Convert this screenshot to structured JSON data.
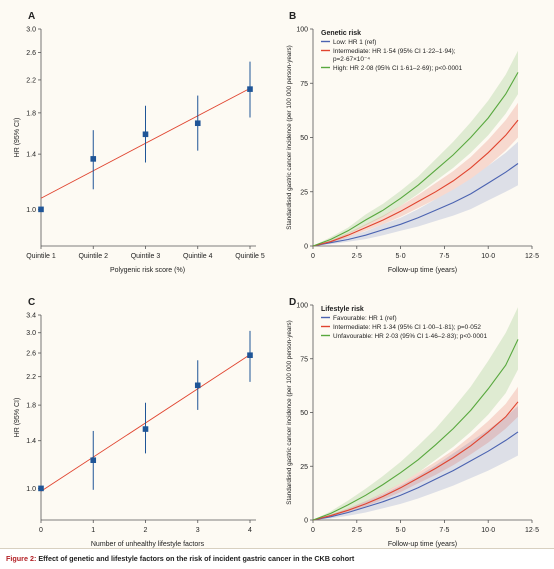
{
  "caption": {
    "prefix": "Figure 2:",
    "text": "Effect of genetic and lifestyle factors on the risk of incident gastric cancer in the CKB cohort"
  },
  "colors": {
    "forest_marker": "#1f5597",
    "forest_line": "#e0442f",
    "low": "#4b63b1",
    "intermediate": "#e0442f",
    "high": "#58a83e"
  },
  "chart_data": [
    {
      "panel": "A",
      "type": "scatter",
      "xlabel": "Polygenic risk score (%)",
      "ylabel": "HR (95% CI)",
      "scale": "log",
      "categories": [
        "Quintile 1",
        "Quintile 2",
        "Quintile 3",
        "Quintile 4",
        "Quintile 5"
      ],
      "yticks": [
        "1.0",
        "1.4",
        "1.8",
        "2.2",
        "2.6",
        "3.0"
      ],
      "ylim": [
        0.8,
        3.0
      ],
      "points": [
        {
          "hr": 1.0,
          "lo": 1.0,
          "hi": 1.0
        },
        {
          "hr": 1.36,
          "lo": 1.13,
          "hi": 1.62
        },
        {
          "hr": 1.58,
          "lo": 1.33,
          "hi": 1.88
        },
        {
          "hr": 1.69,
          "lo": 1.43,
          "hi": 2.0
        },
        {
          "hr": 2.08,
          "lo": 1.75,
          "hi": 2.46
        }
      ],
      "trend": {
        "start": 1.07,
        "end": 2.09
      }
    },
    {
      "panel": "B",
      "type": "line",
      "xlabel": "Follow-up time (years)",
      "ylabel": "Standardised gastric cancer incidence (per 100 000 person-years)",
      "legend_title": "Genetic risk",
      "xticks": [
        "0",
        "2·5",
        "5·0",
        "7·5",
        "10·0",
        "12·5"
      ],
      "yticks": [
        "0",
        "25",
        "50",
        "75",
        "100"
      ],
      "xlim": [
        0,
        12.5
      ],
      "ylim": [
        0,
        100
      ],
      "series": [
        {
          "name": "Low: HR 1 (ref)",
          "color_key": "low",
          "x": [
            0,
            1,
            2,
            3,
            4,
            5,
            6,
            7,
            8,
            9,
            10,
            11,
            11.7
          ],
          "values": [
            0,
            1.5,
            3,
            5,
            7.5,
            10,
            13,
            16.5,
            20,
            24,
            29,
            34,
            38
          ],
          "lower": [
            0,
            0.8,
            2,
            3.2,
            5,
            7,
            9,
            11.5,
            14,
            17,
            21,
            25,
            28
          ],
          "upper": [
            0,
            2.3,
            4.2,
            6.8,
            10,
            13,
            17,
            21.5,
            26,
            31,
            37,
            43,
            48
          ]
        },
        {
          "name": "Intermediate: HR 1·54 (95% CI 1·22–1·94); p=2·67×10⁻⁴",
          "color_key": "intermediate",
          "x": [
            0,
            1,
            2,
            3,
            4,
            5,
            6,
            7,
            8,
            9,
            10,
            11,
            11.7
          ],
          "values": [
            0,
            2,
            5,
            8.5,
            12,
            16,
            20.5,
            25,
            30,
            36,
            43,
            51,
            58
          ],
          "lower": [
            0,
            1.4,
            4,
            7,
            10,
            13.5,
            17.5,
            21.5,
            26,
            31,
            37,
            44,
            50
          ],
          "upper": [
            0,
            2.6,
            6,
            10,
            14,
            18.5,
            23.5,
            29,
            34.5,
            41,
            49,
            58,
            66
          ]
        },
        {
          "name": "High: HR 2·08 (95% CI 1·61–2·69); p<0·0001",
          "color_key": "high",
          "x": [
            0,
            1,
            2,
            3,
            4,
            5,
            6,
            7,
            8,
            9,
            10,
            11,
            11.7
          ],
          "values": [
            0,
            3,
            7,
            12,
            16.5,
            22,
            28,
            35,
            42,
            50,
            59,
            70,
            80
          ],
          "lower": [
            0,
            2,
            5.5,
            9.5,
            13.5,
            18.5,
            24,
            30,
            36,
            43,
            51,
            61,
            70
          ],
          "upper": [
            0,
            4,
            8.5,
            14.5,
            19.5,
            25.5,
            32,
            40,
            48,
            57,
            67,
            79,
            90
          ]
        }
      ]
    },
    {
      "panel": "C",
      "type": "scatter",
      "xlabel": "Number of unhealthy lifestyle factors",
      "ylabel": "HR (95% CI)",
      "scale": "log",
      "categories": [
        "0",
        "1",
        "2",
        "3",
        "4"
      ],
      "yticks": [
        "1.0",
        "1.4",
        "1.8",
        "2.2",
        "2.6",
        "3.0",
        "3.4"
      ],
      "ylim": [
        0.8,
        3.4
      ],
      "points": [
        {
          "hr": 1.0,
          "lo": 1.0,
          "hi": 1.0
        },
        {
          "hr": 1.22,
          "lo": 0.99,
          "hi": 1.5
        },
        {
          "hr": 1.52,
          "lo": 1.28,
          "hi": 1.83
        },
        {
          "hr": 2.07,
          "lo": 1.74,
          "hi": 2.47
        },
        {
          "hr": 2.56,
          "lo": 2.12,
          "hi": 3.04
        }
      ],
      "trend": {
        "start": 0.98,
        "end": 2.57
      }
    },
    {
      "panel": "D",
      "type": "line",
      "xlabel": "Follow-up time (years)",
      "ylabel": "Standardised gastric cancer incidence (per 100 000 person-years)",
      "legend_title": "Lifestyle risk",
      "xticks": [
        "0",
        "2·5",
        "5·0",
        "7·5",
        "10·0",
        "12·5"
      ],
      "yticks": [
        "0",
        "25",
        "50",
        "75",
        "100"
      ],
      "xlim": [
        0,
        12.5
      ],
      "ylim": [
        0,
        100
      ],
      "series": [
        {
          "name": "Favourable: HR 1 (ref)",
          "color_key": "low",
          "x": [
            0,
            1,
            2,
            3,
            4,
            5,
            6,
            7,
            8,
            9,
            10,
            11,
            11.7
          ],
          "values": [
            0,
            1.5,
            3.5,
            6,
            8.5,
            11.5,
            15,
            19,
            23,
            27.5,
            32,
            37,
            41
          ],
          "lower": [
            0,
            0.7,
            2,
            3.5,
            5.5,
            7.5,
            10,
            13,
            16,
            19.5,
            23,
            27,
            30
          ],
          "upper": [
            0,
            2.5,
            5,
            8.5,
            12,
            16,
            20.5,
            25.5,
            31,
            36.5,
            42,
            48,
            53
          ]
        },
        {
          "name": "Intermediate: HR 1·34 (95% CI 1·00–1·81); p=0·052",
          "color_key": "intermediate",
          "x": [
            0,
            1,
            2,
            3,
            4,
            5,
            6,
            7,
            8,
            9,
            10,
            11,
            11.7
          ],
          "values": [
            0,
            2,
            4.5,
            7.5,
            11,
            15,
            19.5,
            24,
            29,
            34.5,
            41,
            48,
            55
          ],
          "lower": [
            0,
            1.5,
            3.7,
            6.3,
            9.5,
            13,
            17,
            21,
            25.5,
            30.5,
            36,
            42.5,
            48
          ],
          "upper": [
            0,
            2.5,
            5.5,
            8.8,
            12.7,
            17,
            22,
            27,
            32.5,
            39,
            46,
            54,
            62
          ]
        },
        {
          "name": "Unfavourable: HR 2·03 (95% CI 1·46–2·83); p<0·0001",
          "color_key": "high",
          "x": [
            0,
            1,
            2,
            3,
            4,
            5,
            6,
            7,
            8,
            9,
            10,
            11,
            11.7
          ],
          "values": [
            0,
            3,
            7,
            11.5,
            16.5,
            22,
            28,
            35,
            42.5,
            51,
            61,
            72,
            84
          ],
          "lower": [
            0,
            2,
            5,
            8.5,
            12.5,
            17,
            22,
            28,
            34,
            41,
            49,
            59,
            70
          ],
          "upper": [
            0,
            4,
            9,
            14.5,
            20.5,
            27,
            34.5,
            42.5,
            52,
            62,
            74,
            87,
            99
          ]
        }
      ]
    }
  ]
}
